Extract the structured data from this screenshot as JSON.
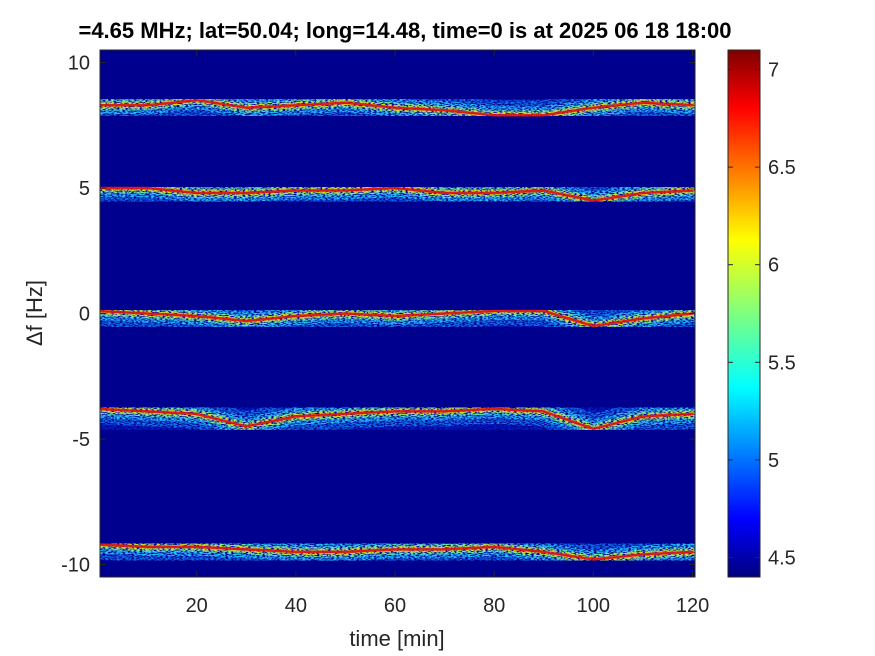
{
  "chart_data": {
    "type": "heatmap",
    "title": "=4.65 MHz;  lat=50.04; long=14.48, time=0 is at 2025 06 18 18:00",
    "xlabel": "time [min]",
    "ylabel": "Δf [Hz]",
    "xlim": [
      0.5,
      120.5
    ],
    "ylim": [
      -10.5,
      10.5
    ],
    "xticks": [
      20,
      40,
      60,
      80,
      100,
      120
    ],
    "yticks": [
      -10,
      -5,
      0,
      5,
      10
    ],
    "xtick_labels": [
      "20",
      "40",
      "60",
      "80",
      "100",
      "120"
    ],
    "ytick_labels": [
      "-10",
      "-5",
      "0",
      "5",
      "10"
    ],
    "colorbar": {
      "colormap": "jet",
      "range": [
        4.4,
        7.1
      ],
      "ticks": [
        4.5,
        5,
        5.5,
        6,
        6.5,
        7
      ],
      "tick_labels": [
        "4.5",
        "5",
        "5.5",
        "6",
        "6.5",
        "7"
      ]
    },
    "background_color": "#00008f",
    "traces": [
      {
        "center_hz": 8.3,
        "x": [
          0,
          10,
          20,
          30,
          40,
          50,
          60,
          70,
          80,
          90,
          100,
          110,
          120
        ],
        "y": [
          8.3,
          8.3,
          8.5,
          8.2,
          8.3,
          8.4,
          8.2,
          8.1,
          7.9,
          7.9,
          8.2,
          8.4,
          8.3
        ]
      },
      {
        "center_hz": 5.0,
        "x": [
          0,
          10,
          20,
          30,
          40,
          50,
          60,
          70,
          80,
          90,
          100,
          110,
          120
        ],
        "y": [
          5.0,
          5.0,
          4.8,
          4.8,
          4.9,
          4.9,
          5.0,
          4.8,
          4.8,
          4.9,
          4.5,
          4.8,
          4.9
        ]
      },
      {
        "center_hz": 0.0,
        "x": [
          0,
          10,
          20,
          30,
          40,
          50,
          60,
          70,
          80,
          90,
          100,
          110,
          120
        ],
        "y": [
          0.1,
          0.0,
          -0.1,
          -0.3,
          -0.1,
          0.0,
          -0.1,
          0.0,
          0.1,
          0.1,
          -0.5,
          -0.2,
          0.0
        ]
      },
      {
        "center_hz": -4.0,
        "x": [
          0,
          10,
          20,
          30,
          40,
          50,
          60,
          70,
          80,
          90,
          100,
          110,
          120
        ],
        "y": [
          -3.8,
          -3.9,
          -4.0,
          -4.5,
          -4.1,
          -4.0,
          -3.9,
          -3.9,
          -3.8,
          -3.9,
          -4.6,
          -4.1,
          -4.0
        ]
      },
      {
        "center_hz": -9.3,
        "x": [
          0,
          10,
          20,
          30,
          40,
          50,
          60,
          70,
          80,
          90,
          100,
          110,
          120
        ],
        "y": [
          -9.2,
          -9.3,
          -9.3,
          -9.4,
          -9.5,
          -9.5,
          -9.4,
          -9.4,
          -9.3,
          -9.5,
          -9.8,
          -9.6,
          -9.5
        ]
      }
    ]
  }
}
